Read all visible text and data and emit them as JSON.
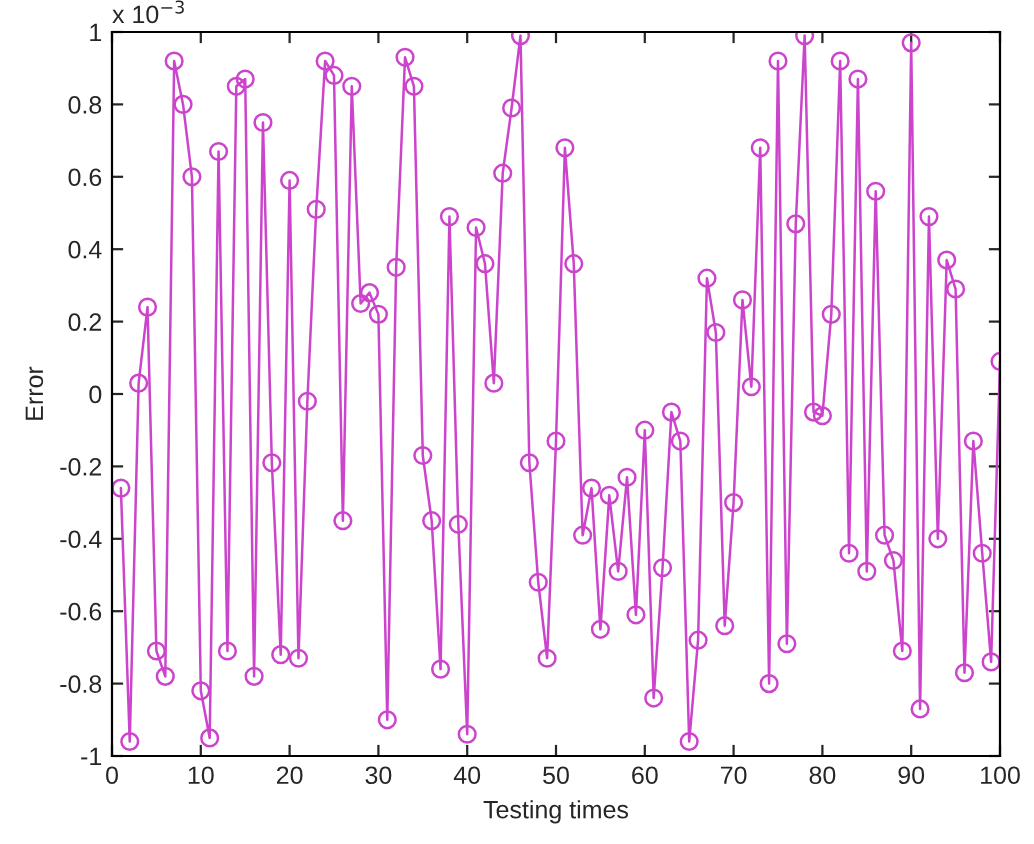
{
  "chart_data": {
    "type": "line",
    "xlabel": "Testing times",
    "ylabel": "Error",
    "annotations": [
      "x 10$^{−3}$"
    ],
    "x": [
      1,
      2,
      3,
      4,
      5,
      6,
      7,
      8,
      9,
      10,
      11,
      12,
      13,
      14,
      15,
      16,
      17,
      18,
      19,
      20,
      21,
      22,
      23,
      24,
      25,
      26,
      27,
      28,
      29,
      30,
      31,
      32,
      33,
      34,
      35,
      36,
      37,
      38,
      39,
      40,
      41,
      42,
      43,
      44,
      45,
      46,
      47,
      48,
      49,
      50,
      51,
      52,
      53,
      54,
      55,
      56,
      57,
      58,
      59,
      60,
      61,
      62,
      63,
      64,
      65,
      66,
      67,
      68,
      69,
      70,
      71,
      72,
      73,
      74,
      75,
      76,
      77,
      78,
      79,
      80,
      81,
      82,
      83,
      84,
      85,
      86,
      87,
      88,
      89,
      90,
      91,
      92,
      93,
      94,
      95,
      96,
      97,
      98,
      99,
      100
    ],
    "series": [
      {
        "color": "#cc44cc",
        "values": [
          -0.26,
          -0.96,
          0.03,
          0.24,
          -0.71,
          -0.78,
          0.92,
          0.8,
          0.6,
          -0.82,
          -0.95,
          0.67,
          -0.71,
          0.85,
          0.87,
          -0.78,
          0.75,
          -0.19,
          -0.72,
          0.59,
          -0.73,
          -0.02,
          0.51,
          0.92,
          0.88,
          -0.35,
          0.85,
          0.25,
          0.28,
          0.22,
          -0.9,
          0.35,
          0.93,
          0.85,
          -0.17,
          -0.35,
          -0.76,
          0.49,
          -0.36,
          -0.94,
          0.46,
          0.36,
          0.03,
          0.61,
          0.79,
          0.99,
          -0.19,
          -0.52,
          -0.73,
          -0.13,
          0.68,
          0.36,
          -0.39,
          -0.26,
          -0.65,
          -0.28,
          -0.49,
          -0.23,
          -0.61,
          -0.1,
          -0.84,
          -0.48,
          -0.05,
          -0.13,
          -0.96,
          -0.68,
          0.32,
          0.17,
          -0.64,
          -0.3,
          0.26,
          0.02,
          0.68,
          -0.8,
          0.92,
          -0.69,
          0.47,
          0.99,
          -0.05,
          -0.06,
          0.22,
          0.92,
          -0.44,
          0.87,
          -0.49,
          0.56,
          -0.39,
          -0.46,
          -0.71,
          0.97,
          -0.87,
          0.49,
          -0.4,
          0.37,
          0.29,
          -0.77,
          -0.13,
          -0.44,
          -0.74,
          0.09
        ]
      }
    ],
    "xlim": [
      0,
      100
    ],
    "xticks": [
      0,
      10,
      20,
      30,
      40,
      50,
      60,
      70,
      80,
      90,
      100
    ],
    "ylim": [
      -1,
      1
    ],
    "yticks": [
      -1,
      -0.8,
      -0.6,
      -0.4,
      -0.2,
      0,
      0.2,
      0.4,
      0.6,
      0.8,
      1
    ],
    "marker": "circle",
    "line_style": "solid",
    "grid": false,
    "legend": false
  }
}
